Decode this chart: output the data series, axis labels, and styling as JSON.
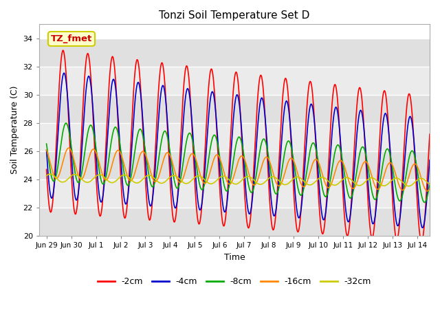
{
  "title": "Tonzi Soil Temperature Set D",
  "xlabel": "Time",
  "ylabel": "Soil Temperature (C)",
  "xlim_days": [
    -0.3,
    15.5
  ],
  "ylim": [
    20,
    35
  ],
  "yticks": [
    20,
    22,
    24,
    26,
    28,
    30,
    32,
    34
  ],
  "xtick_labels": [
    "Jun 29",
    "Jun 30",
    "Jul 1",
    "Jul 2",
    "Jul 3",
    "Jul 4",
    "Jul 5",
    "Jul 6",
    "Jul 7",
    "Jul 8",
    "Jul 9",
    "Jul 10",
    "Jul 11",
    "Jul 12",
    "Jul 13",
    "Jul 14"
  ],
  "xtick_positions": [
    0,
    1,
    2,
    3,
    4,
    5,
    6,
    7,
    8,
    9,
    10,
    11,
    12,
    13,
    14,
    15
  ],
  "series_labels": [
    "-2cm",
    "-4cm",
    "-8cm",
    "-16cm",
    "-32cm"
  ],
  "series_colors": [
    "#ff0000",
    "#0000cc",
    "#00aa00",
    "#ff8800",
    "#cccc00"
  ],
  "annotation_text": "TZ_fmet",
  "annotation_color": "#cc0000",
  "annotation_bg": "#ffffcc",
  "annotation_border": "#cccc00",
  "plot_bg_light": "#e8e8e8",
  "plot_bg_white": "#f5f5f5",
  "grid_color": "#ffffff",
  "n_days": 15.5,
  "samples_per_day": 96,
  "band_colors": [
    "#e0e0e0",
    "#ebebeb"
  ]
}
